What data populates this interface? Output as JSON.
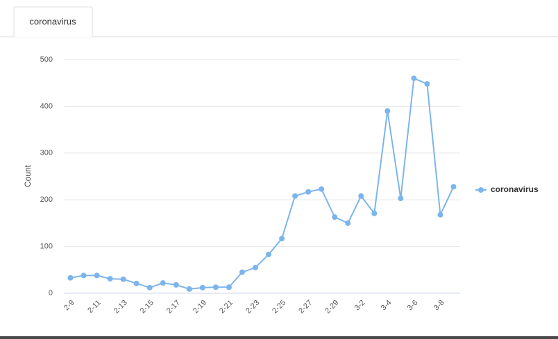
{
  "tab": "coronavirus",
  "chart_data": {
    "type": "line",
    "y_label": "Count",
    "categories": [
      "2-9",
      null,
      "2-11",
      null,
      "2-13",
      null,
      "2-15",
      null,
      "2-17",
      null,
      "2-19",
      null,
      "2-21",
      null,
      "2-23",
      null,
      "2-25",
      null,
      "2-27",
      null,
      "2-29",
      null,
      "3-2",
      null,
      "3-4",
      null,
      "3-6",
      null,
      "3-8",
      null
    ],
    "series": [
      {
        "name": "coronavirus",
        "color": "#7cb5ec",
        "values": [
          33,
          38,
          38,
          31,
          30,
          21,
          12,
          22,
          18,
          9,
          12,
          13,
          13,
          45,
          55,
          83,
          117,
          208,
          217,
          223,
          163,
          150,
          208,
          171,
          390,
          203,
          460,
          448,
          168,
          228
        ]
      }
    ],
    "ylim": [
      0,
      500
    ],
    "yticks": [
      0,
      100,
      200,
      300,
      400,
      500
    ],
    "grid": true,
    "legend": "right"
  }
}
